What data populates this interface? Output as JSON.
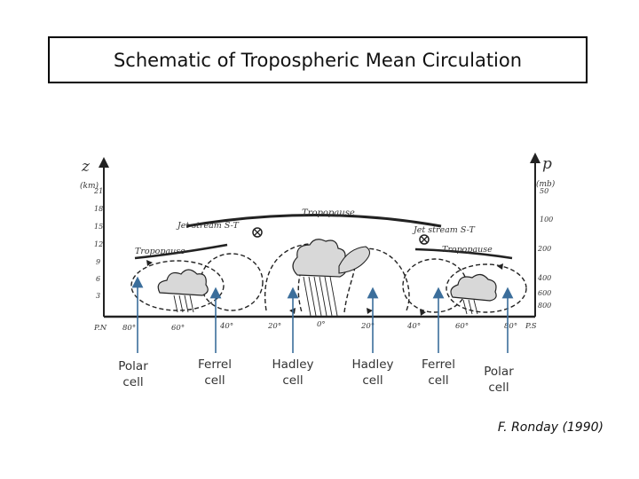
{
  "title": "Schematic of Tropospheric Mean Circulation",
  "figure": {
    "left_axis": {
      "symbol": "z",
      "unit": "(km)",
      "ticks": [
        "21",
        "18",
        "15",
        "12",
        "9",
        "6",
        "3"
      ]
    },
    "right_axis": {
      "symbol": "p",
      "unit": "(mb)",
      "ticks": [
        "50",
        "100",
        "200",
        "400",
        "600",
        "800"
      ]
    },
    "latitude_labels": [
      "P.N",
      "80°",
      "60°",
      "40°",
      "20°",
      "0°",
      "20°",
      "40°",
      "60°",
      "80°",
      "P.S"
    ],
    "annotations": {
      "tropopause_center": "Tropopause",
      "tropopause_left": "Tropopause",
      "tropopause_right": "Tropopause",
      "jet_left": "Jet stream S-T",
      "jet_right": "Jet stream S-T"
    }
  },
  "cells": [
    {
      "name": "Polar",
      "suffix": "cell"
    },
    {
      "name": "Ferrel",
      "suffix": "cell"
    },
    {
      "name": "Hadley",
      "suffix": "cell"
    },
    {
      "name": "Hadley",
      "suffix": "cell"
    },
    {
      "name": "Ferrel",
      "suffix": "cell"
    },
    {
      "name": "Polar",
      "suffix": "cell"
    }
  ],
  "credit": "F. Ronday (1990)"
}
